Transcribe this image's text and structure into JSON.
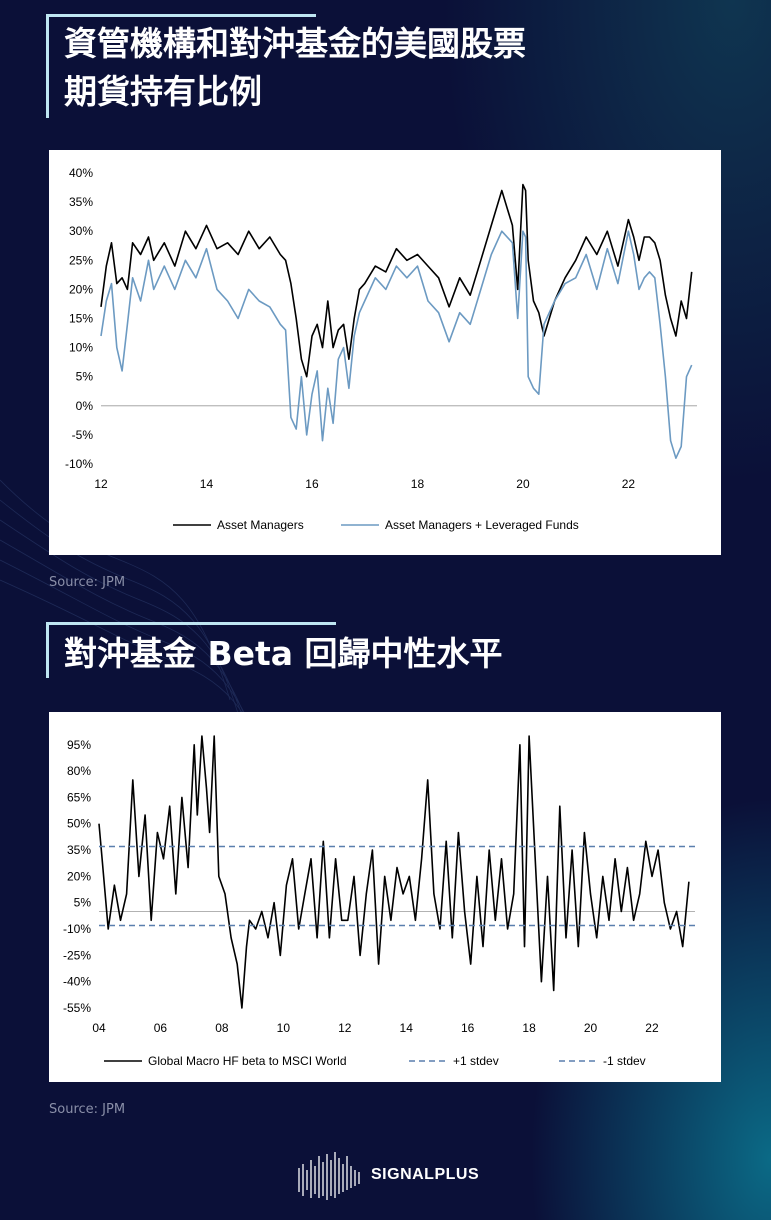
{
  "section1": {
    "title_line1": "資管機構和對沖基金的美國股票",
    "title_line2": "期貨持有比例",
    "source": "Source: JPM"
  },
  "section2": {
    "title": "對沖基金 Beta 回歸中性水平",
    "source": "Source: JPM"
  },
  "logo": {
    "text": "SIGNALPLUS"
  },
  "colors": {
    "background": "#0b1038",
    "accent": "#bfe6f2",
    "series_black": "#000000",
    "series_blue": "#6c9ac2",
    "stdev": "#5a7fae"
  },
  "chart_data": [
    {
      "type": "line",
      "title": "",
      "xlabel": "",
      "ylabel": "",
      "ylim": [
        -10,
        40
      ],
      "yticks": [
        40,
        35,
        30,
        25,
        20,
        15,
        10,
        5,
        0,
        -5,
        -10
      ],
      "ytick_labels": [
        "40%",
        "35%",
        "30%",
        "25%",
        "20%",
        "15%",
        "10%",
        "5%",
        "0%",
        "-5%",
        "-10%"
      ],
      "xlim": [
        2012,
        2023.3
      ],
      "xticks": [
        2012,
        2014,
        2016,
        2018,
        2020,
        2022
      ],
      "xtick_labels": [
        "12",
        "14",
        "16",
        "18",
        "20",
        "22"
      ],
      "legend_position": "bottom",
      "grid": false,
      "series": [
        {
          "name": "Asset Managers",
          "color": "#000000",
          "x": [
            2012.0,
            2012.1,
            2012.2,
            2012.3,
            2012.4,
            2012.5,
            2012.6,
            2012.75,
            2012.9,
            2013.0,
            2013.2,
            2013.4,
            2013.6,
            2013.8,
            2014.0,
            2014.2,
            2014.4,
            2014.6,
            2014.8,
            2015.0,
            2015.2,
            2015.4,
            2015.5,
            2015.6,
            2015.7,
            2015.8,
            2015.9,
            2016.0,
            2016.1,
            2016.2,
            2016.3,
            2016.4,
            2016.5,
            2016.6,
            2016.7,
            2016.8,
            2016.9,
            2017.0,
            2017.2,
            2017.4,
            2017.6,
            2017.8,
            2018.0,
            2018.2,
            2018.4,
            2018.6,
            2018.8,
            2019.0,
            2019.2,
            2019.4,
            2019.6,
            2019.8,
            2019.9,
            2020.0,
            2020.05,
            2020.1,
            2020.2,
            2020.3,
            2020.4,
            2020.6,
            2020.8,
            2021.0,
            2021.2,
            2021.4,
            2021.6,
            2021.8,
            2022.0,
            2022.1,
            2022.2,
            2022.3,
            2022.4,
            2022.5,
            2022.6,
            2022.7,
            2022.8,
            2022.9,
            2023.0,
            2023.1,
            2023.2
          ],
          "values": [
            17,
            24,
            28,
            21,
            22,
            20,
            28,
            26,
            29,
            25,
            28,
            24,
            30,
            27,
            31,
            27,
            28,
            26,
            30,
            27,
            29,
            26,
            25,
            21,
            15,
            8,
            5,
            12,
            14,
            10,
            18,
            10,
            13,
            14,
            8,
            15,
            20,
            21,
            24,
            23,
            27,
            25,
            26,
            24,
            22,
            17,
            22,
            19,
            25,
            31,
            37,
            31,
            20,
            38,
            37,
            25,
            18,
            16,
            12,
            18,
            22,
            25,
            29,
            26,
            30,
            24,
            32,
            29,
            25,
            29,
            29,
            28,
            25,
            19,
            15,
            12,
            18,
            15,
            23
          ]
        },
        {
          "name": "Asset Managers + Leveraged Funds",
          "color": "#6c9ac2",
          "x": [
            2012.0,
            2012.1,
            2012.2,
            2012.3,
            2012.4,
            2012.5,
            2012.6,
            2012.75,
            2012.9,
            2013.0,
            2013.2,
            2013.4,
            2013.6,
            2013.8,
            2014.0,
            2014.2,
            2014.4,
            2014.6,
            2014.8,
            2015.0,
            2015.2,
            2015.4,
            2015.5,
            2015.6,
            2015.7,
            2015.8,
            2015.9,
            2016.0,
            2016.1,
            2016.2,
            2016.3,
            2016.4,
            2016.5,
            2016.6,
            2016.7,
            2016.8,
            2016.9,
            2017.0,
            2017.2,
            2017.4,
            2017.6,
            2017.8,
            2018.0,
            2018.2,
            2018.4,
            2018.6,
            2018.8,
            2019.0,
            2019.2,
            2019.4,
            2019.6,
            2019.8,
            2019.9,
            2020.0,
            2020.05,
            2020.1,
            2020.2,
            2020.3,
            2020.4,
            2020.6,
            2020.8,
            2021.0,
            2021.2,
            2021.4,
            2021.6,
            2021.8,
            2022.0,
            2022.1,
            2022.2,
            2022.3,
            2022.4,
            2022.5,
            2022.6,
            2022.7,
            2022.8,
            2022.9,
            2023.0,
            2023.1,
            2023.2
          ],
          "values": [
            12,
            18,
            21,
            10,
            6,
            14,
            22,
            18,
            25,
            20,
            24,
            20,
            25,
            22,
            27,
            20,
            18,
            15,
            20,
            18,
            17,
            14,
            13,
            -2,
            -4,
            5,
            -5,
            2,
            6,
            -6,
            3,
            -3,
            8,
            10,
            3,
            12,
            16,
            18,
            22,
            20,
            24,
            22,
            24,
            18,
            16,
            11,
            16,
            14,
            20,
            26,
            30,
            28,
            15,
            30,
            29,
            5,
            3,
            2,
            14,
            18,
            21,
            22,
            26,
            20,
            27,
            21,
            30,
            26,
            20,
            22,
            23,
            22,
            14,
            5,
            -6,
            -9,
            -7,
            5,
            7
          ]
        }
      ]
    },
    {
      "type": "line",
      "title": "",
      "xlabel": "",
      "ylabel": "",
      "ylim": [
        -55,
        100
      ],
      "yticks": [
        95,
        80,
        65,
        50,
        35,
        20,
        5,
        -10,
        -25,
        -40,
        -55
      ],
      "ytick_labels": [
        "95%",
        "80%",
        "65%",
        "50%",
        "35%",
        "20%",
        "5%",
        "-10%",
        "-25%",
        "-40%",
        "-55%"
      ],
      "xlim": [
        2004,
        2023.4
      ],
      "xticks": [
        2004,
        2006,
        2008,
        2010,
        2012,
        2014,
        2016,
        2018,
        2020,
        2022
      ],
      "xtick_labels": [
        "04",
        "06",
        "08",
        "10",
        "12",
        "14",
        "16",
        "18",
        "20",
        "22"
      ],
      "legend_position": "bottom",
      "grid": false,
      "series": [
        {
          "name": "Global Macro HF beta to MSCI World",
          "color": "#000000",
          "x": [
            2004.0,
            2004.1,
            2004.3,
            2004.5,
            2004.7,
            2004.9,
            2005.1,
            2005.3,
            2005.5,
            2005.7,
            2005.9,
            2006.1,
            2006.3,
            2006.5,
            2006.7,
            2006.9,
            2007.1,
            2007.2,
            2007.35,
            2007.5,
            2007.6,
            2007.75,
            2007.9,
            2008.1,
            2008.3,
            2008.5,
            2008.65,
            2008.8,
            2008.9,
            2009.1,
            2009.3,
            2009.5,
            2009.7,
            2009.9,
            2010.1,
            2010.3,
            2010.5,
            2010.7,
            2010.9,
            2011.1,
            2011.3,
            2011.5,
            2011.7,
            2011.9,
            2012.1,
            2012.3,
            2012.5,
            2012.7,
            2012.9,
            2013.1,
            2013.3,
            2013.5,
            2013.7,
            2013.9,
            2014.1,
            2014.3,
            2014.5,
            2014.7,
            2014.9,
            2015.1,
            2015.3,
            2015.5,
            2015.7,
            2015.9,
            2016.1,
            2016.3,
            2016.5,
            2016.7,
            2016.9,
            2017.1,
            2017.3,
            2017.5,
            2017.7,
            2017.85,
            2018.0,
            2018.2,
            2018.4,
            2018.6,
            2018.8,
            2019.0,
            2019.2,
            2019.4,
            2019.6,
            2019.8,
            2020.0,
            2020.2,
            2020.4,
            2020.6,
            2020.8,
            2021.0,
            2021.2,
            2021.4,
            2021.6,
            2021.8,
            2022.0,
            2022.2,
            2022.4,
            2022.6,
            2022.8,
            2023.0,
            2023.2
          ],
          "values": [
            50,
            30,
            -10,
            15,
            -5,
            10,
            75,
            20,
            55,
            -5,
            45,
            30,
            60,
            10,
            65,
            25,
            95,
            55,
            100,
            70,
            45,
            100,
            20,
            10,
            -15,
            -30,
            -55,
            -20,
            -5,
            -10,
            0,
            -15,
            5,
            -25,
            15,
            30,
            -10,
            10,
            30,
            -15,
            40,
            -15,
            30,
            -5,
            -5,
            20,
            -25,
            10,
            35,
            -30,
            20,
            -5,
            25,
            10,
            20,
            -5,
            30,
            75,
            10,
            -10,
            40,
            -15,
            45,
            0,
            -30,
            20,
            -20,
            35,
            -5,
            30,
            -10,
            10,
            95,
            -20,
            100,
            30,
            -40,
            20,
            -45,
            60,
            -15,
            35,
            -20,
            45,
            10,
            -15,
            20,
            -5,
            30,
            0,
            25,
            -5,
            10,
            40,
            20,
            35,
            5,
            -10,
            0,
            -20,
            17
          ]
        },
        {
          "name": "+1 stdev",
          "color": "#5a7fae",
          "value": 37
        },
        {
          "name": "-1 stdev",
          "color": "#5a7fae",
          "value": -8
        }
      ]
    }
  ]
}
